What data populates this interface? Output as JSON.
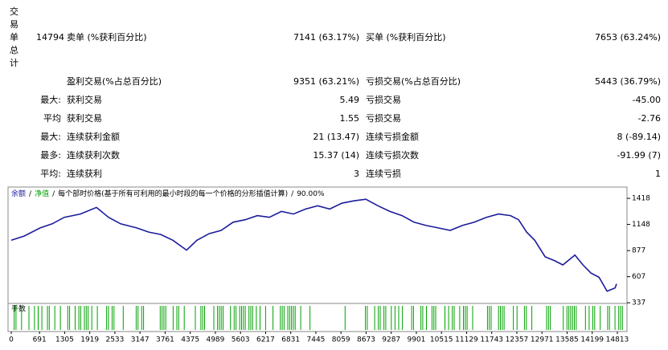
{
  "report": {
    "side_label": [
      "交",
      "易",
      "单",
      "总",
      "计"
    ],
    "total_trades": "14794",
    "rows": [
      {
        "prefix": null,
        "label1": "卖单 (%获利百分比)",
        "value1": "7141 (63.17%)",
        "label2": "买单 (%获利百分比)",
        "value2": "7653 (63.24%)"
      },
      {
        "prefix": null,
        "label1": "盈利交易(%占总百分比)",
        "value1": "9351 (63.21%)",
        "label2": "亏损交易(%占总百分比)",
        "value2": "5443 (36.79%)"
      },
      {
        "prefix": "最大:",
        "label1": "获利交易",
        "value1": "5.49",
        "label2": "亏损交易",
        "value2": "-45.00"
      },
      {
        "prefix": "平均",
        "label1": "获利交易",
        "value1": "1.55",
        "label2": "亏损交易",
        "value2": "-2.76"
      },
      {
        "prefix": "最大:",
        "label1": "连续获利金额",
        "value1": "21 (13.47)",
        "label2": "连续亏损金额",
        "value2": "8 (-89.14)"
      },
      {
        "prefix": "最多:",
        "label1": "连续获利次数",
        "value1": "15.37 (14)",
        "label2": "连续亏损次数",
        "value2": "-91.99 (7)"
      },
      {
        "prefix": "平均:",
        "label1": "连续获利",
        "value1": "3",
        "label2": "连续亏损",
        "value2": "1"
      }
    ]
  },
  "chart_data": {
    "type": "line",
    "legend_separator": "/",
    "equity_label": "净值",
    "equity_color": "#00a000",
    "model_note": "每个部时价格(基于所有可利用的最小时段的每一个价格的分形插值计算)",
    "quality": "90.00%",
    "volume_label": "手数",
    "x": [
      0,
      314,
      707,
      1002,
      1297,
      1690,
      2083,
      2378,
      2672,
      3065,
      3360,
      3655,
      3950,
      4284,
      4539,
      4834,
      5129,
      5423,
      5718,
      6013,
      6308,
      6603,
      6897,
      7192,
      7487,
      7781,
      8076,
      8371,
      8666,
      8961,
      9255,
      9550,
      9845,
      10139,
      10434,
      10729,
      11024,
      11318,
      11613,
      11908,
      12203,
      12399,
      12596,
      12793,
      13048,
      13284,
      13481,
      13776,
      13972,
      14169,
      14365,
      14562,
      14758,
      14794
    ],
    "series": [
      {
        "name": "余额",
        "color": "#1c1c9c",
        "values": [
          984,
          1027,
          1112,
          1154,
          1222,
          1256,
          1324,
          1222,
          1154,
          1112,
          1069,
          1044,
          984,
          882,
          984,
          1052,
          1086,
          1171,
          1197,
          1239,
          1222,
          1282,
          1256,
          1307,
          1341,
          1307,
          1367,
          1392,
          1409,
          1341,
          1282,
          1239,
          1171,
          1137,
          1112,
          1086,
          1137,
          1171,
          1222,
          1256,
          1239,
          1197,
          1069,
          984,
          814,
          771,
          729,
          831,
          729,
          644,
          601,
          456,
          490,
          533
        ]
      }
    ],
    "xlim": [
      -59,
      15049
    ],
    "ylim": [
      330,
      1535
    ],
    "xticks": [
      0,
      691,
      1305,
      1919,
      2533,
      3147,
      3761,
      4375,
      4989,
      5603,
      6217,
      6831,
      7445,
      8059,
      8673,
      9287,
      9901,
      10515,
      11129,
      11743,
      12357,
      12971,
      13585,
      14199,
      14813
    ],
    "yticks": [
      337,
      607,
      877,
      1148,
      1418
    ],
    "grid": false
  }
}
